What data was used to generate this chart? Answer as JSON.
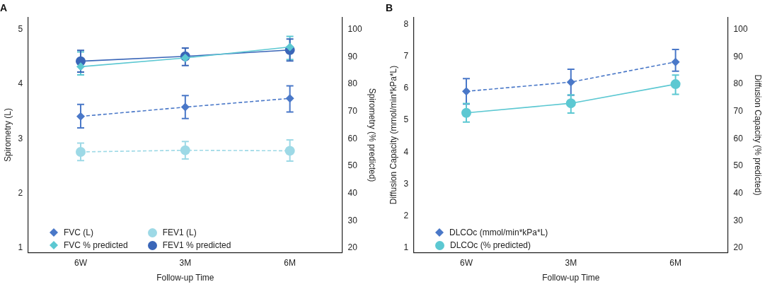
{
  "chart_data": [
    {
      "type": "line",
      "title": "A",
      "xlabel": "Follow-up Time",
      "ylabel": "Spirometry (L)",
      "y2label": "Spirometry (% predicted)",
      "categories": [
        "6W",
        "3M",
        "6M"
      ],
      "ylim": [
        0.92,
        5.22
      ],
      "yticks": [
        1,
        2,
        3,
        4,
        5
      ],
      "y2lim": [
        18.4,
        104.4
      ],
      "y2ticks": [
        20,
        30,
        40,
        50,
        60,
        70,
        80,
        90,
        100
      ],
      "grid": false,
      "legend": "bottom left",
      "series": [
        {
          "name": "FVC (L)",
          "color": "#4a78c8",
          "marker": "diamond",
          "line_style": "dashed",
          "values": [
            3.41,
            3.58,
            3.74
          ],
          "errors": [
            [
              3.2,
              3.63
            ],
            [
              3.37,
              3.79
            ],
            [
              3.49,
              3.97
            ]
          ]
        },
        {
          "name": "FVC % predicted",
          "color": "#5cc8d2",
          "marker": "diamond",
          "line_style": "solid",
          "axis": "y2",
          "values": [
            86.4,
            89.6,
            93.6
          ],
          "errors": [
            [
              83.4,
              91.8
            ],
            null,
            [
              89,
              97.5
            ]
          ]
        },
        {
          "name": "FEV1 (L)",
          "color": "#9dd9e6",
          "marker": "circle",
          "line_style": "dashed",
          "values": [
            2.76,
            2.79,
            2.78
          ],
          "errors": [
            [
              2.6,
              2.92
            ],
            [
              2.63,
              2.95
            ],
            [
              2.59,
              2.98
            ]
          ]
        },
        {
          "name": "FEV1 % predicted",
          "color": "#3a66b8",
          "marker": "circle",
          "line_style": "solid",
          "axis": "y2",
          "values": [
            88.4,
            90.2,
            92.5
          ],
          "errors": [
            [
              84.4,
              92.4
            ],
            [
              86.8,
              93.2
            ],
            [
              88.5,
              96.5
            ]
          ]
        }
      ]
    },
    {
      "type": "line",
      "title": "B",
      "xlabel": "Follow-up Time",
      "ylabel": "Diffusion Capacity (mmol/min*kPa*L)",
      "y2label": "Diffusion Capacity (% predicted)",
      "categories": [
        "6W",
        "3M",
        "6M"
      ],
      "ylim": [
        0.86,
        8.21
      ],
      "yticks": [
        1,
        2,
        3,
        4,
        5,
        6,
        7,
        8
      ],
      "y2lim": [
        18.4,
        104.4
      ],
      "y2ticks": [
        20,
        30,
        40,
        50,
        60,
        70,
        80,
        90,
        100
      ],
      "grid": false,
      "legend": "bottom left",
      "series": [
        {
          "name": "DLCOc (mmol/min*kPa*L)",
          "color": "#4a78c8",
          "marker": "diamond",
          "line_style": "dashed",
          "values": [
            5.9,
            6.19,
            6.82
          ],
          "errors": [
            [
              5.5,
              6.3
            ],
            [
              5.78,
              6.59
            ],
            [
              6.53,
              7.21
            ]
          ]
        },
        {
          "name": "DLCOc (% predicted)",
          "color": "#5cc8d2",
          "marker": "circle",
          "line_style": "solid",
          "axis": "y2",
          "values": [
            69.5,
            73,
            80
          ],
          "errors": [
            [
              66.1,
              72.9
            ],
            [
              69.4,
              76.1
            ],
            [
              76.3,
              83.3
            ]
          ]
        }
      ]
    }
  ]
}
